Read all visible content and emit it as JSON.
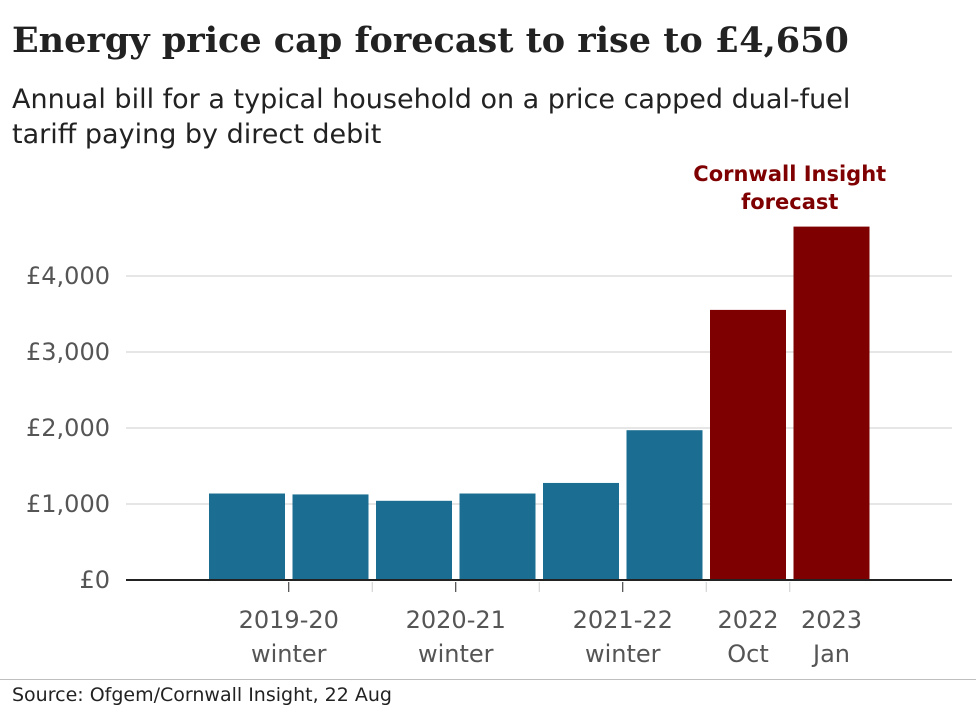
{
  "title": "Energy price cap forecast to rise to £4,650",
  "subtitle": "Annual bill for a typical household on a price capped dual-fuel tariff paying by direct debit",
  "source": "Source: Ofgem/Cornwall Insight, 22 Aug",
  "annotation": [
    "Cornwall Insight",
    "forecast"
  ],
  "colors": {
    "actual": "#1b6e91",
    "forecast": "#7f0000"
  },
  "chart_data": {
    "type": "bar",
    "title": "Energy price cap forecast to rise to £4,650",
    "subtitle": "Annual bill for a typical household on a price capped dual-fuel tariff paying by direct debit",
    "xlabel": "",
    "ylabel": "",
    "ylim": [
      0,
      4650
    ],
    "yticks": [
      0,
      1000,
      2000,
      3000,
      4000
    ],
    "ytick_labels": [
      "£0",
      "£1,000",
      "£2,000",
      "£3,000",
      "£4,000"
    ],
    "grid": true,
    "values": [
      1138,
      1126,
      1042,
      1138,
      1277,
      1971,
      3554,
      4650
    ],
    "bar_types": [
      "actual",
      "actual",
      "actual",
      "actual",
      "actual",
      "actual",
      "forecast",
      "forecast"
    ],
    "category_labels": [
      {
        "lines": [
          "2019-20",
          "winter"
        ],
        "bars": [
          0,
          1
        ]
      },
      {
        "lines": [
          "2020-21",
          "winter"
        ],
        "bars": [
          2,
          3
        ]
      },
      {
        "lines": [
          "2021-22",
          "winter"
        ],
        "bars": [
          4,
          5
        ]
      },
      {
        "lines": [
          "2022",
          "Oct"
        ],
        "bars": [
          6
        ]
      },
      {
        "lines": [
          "2023",
          "Jan"
        ],
        "bars": [
          7
        ]
      }
    ]
  }
}
